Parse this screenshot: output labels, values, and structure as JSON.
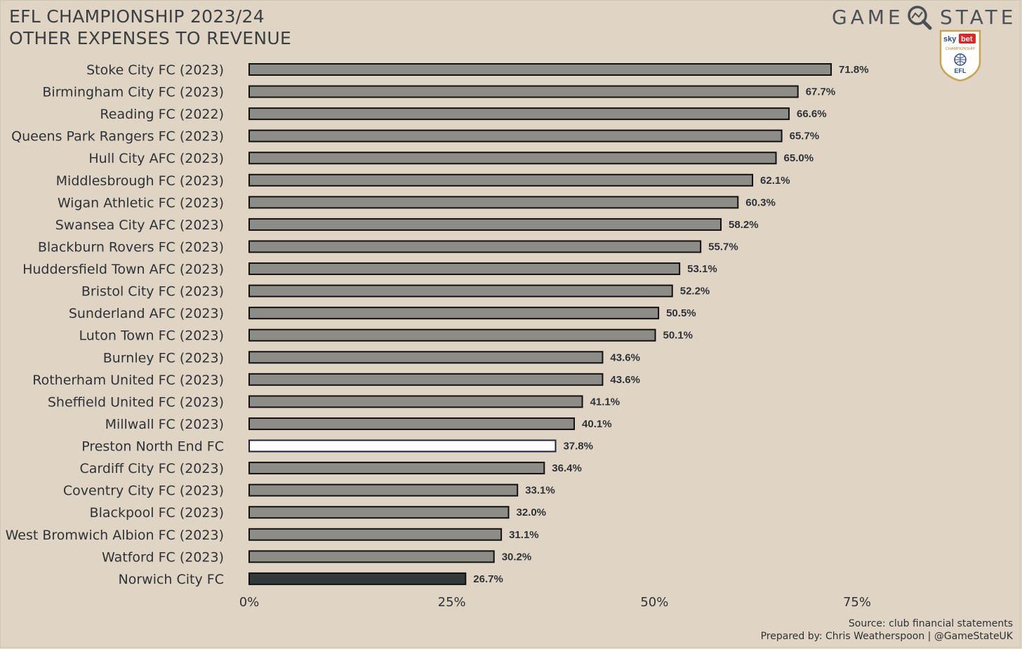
{
  "header": {
    "title_line1": "EFL CHAMPIONSHIP 2023/24",
    "title_line2": "OTHER EXPENSES TO REVENUE"
  },
  "brand": {
    "word1": "GAME",
    "word2": "STATE",
    "badge_sky": "sky",
    "badge_bet": "bet",
    "badge_championship": "CHAMPIONSHIP",
    "badge_efl": "EFL"
  },
  "footer": {
    "source": "Source: club financial statements",
    "credit": "Prepared by: Chris Weatherspoon | @GameStateUK"
  },
  "colors": {
    "background": "#e0d5c5",
    "bar_default": "#8e8c86",
    "bar_highlight": "#ffffff",
    "bar_highlight_stroke": "#1c2140",
    "bar_dark": "#303a3a",
    "bar_stroke": "#111111",
    "text": "#2e3236"
  },
  "chart_data": {
    "type": "bar",
    "orientation": "horizontal",
    "title": "EFL CHAMPIONSHIP 2023/24 OTHER EXPENSES TO REVENUE",
    "xlabel": "",
    "ylabel": "",
    "xlim": [
      0,
      75
    ],
    "xticks": [
      0,
      25,
      50,
      75
    ],
    "xtick_labels": [
      "0%",
      "25%",
      "50%",
      "75%"
    ],
    "grid": false,
    "categories": [
      "Stoke City FC (2023)",
      "Birmingham City FC (2023)",
      "Reading FC (2022)",
      "Queens Park Rangers FC (2023)",
      "Hull City AFC (2023)",
      "Middlesbrough FC (2023)",
      "Wigan Athletic FC (2023)",
      "Swansea City AFC (2023)",
      "Blackburn Rovers FC (2023)",
      "Huddersfield Town AFC (2023)",
      "Bristol City FC (2023)",
      "Sunderland AFC (2023)",
      "Luton Town FC (2023)",
      "Burnley FC (2023)",
      "Rotherham United FC (2023)",
      "Sheffield United FC (2023)",
      "Millwall FC (2023)",
      "Preston North End FC",
      "Cardiff City FC (2023)",
      "Coventry City FC (2023)",
      "Blackpool FC (2023)",
      "West Bromwich Albion FC (2023)",
      "Watford FC (2023)",
      "Norwich City FC"
    ],
    "values": [
      71.8,
      67.7,
      66.6,
      65.7,
      65.0,
      62.1,
      60.3,
      58.2,
      55.7,
      53.1,
      52.2,
      50.5,
      50.1,
      43.6,
      43.6,
      41.1,
      40.1,
      37.8,
      36.4,
      33.1,
      32.0,
      31.1,
      30.2,
      26.7
    ],
    "value_labels": [
      "71.8%",
      "67.7%",
      "66.6%",
      "65.7%",
      "65.0%",
      "62.1%",
      "60.3%",
      "58.2%",
      "55.7%",
      "53.1%",
      "52.2%",
      "50.5%",
      "50.1%",
      "43.6%",
      "43.6%",
      "41.1%",
      "40.1%",
      "37.8%",
      "36.4%",
      "33.1%",
      "32.0%",
      "31.1%",
      "30.2%",
      "26.7%"
    ],
    "highlight": {
      "Preston North End FC": "white",
      "Norwich City FC": "dark"
    }
  }
}
